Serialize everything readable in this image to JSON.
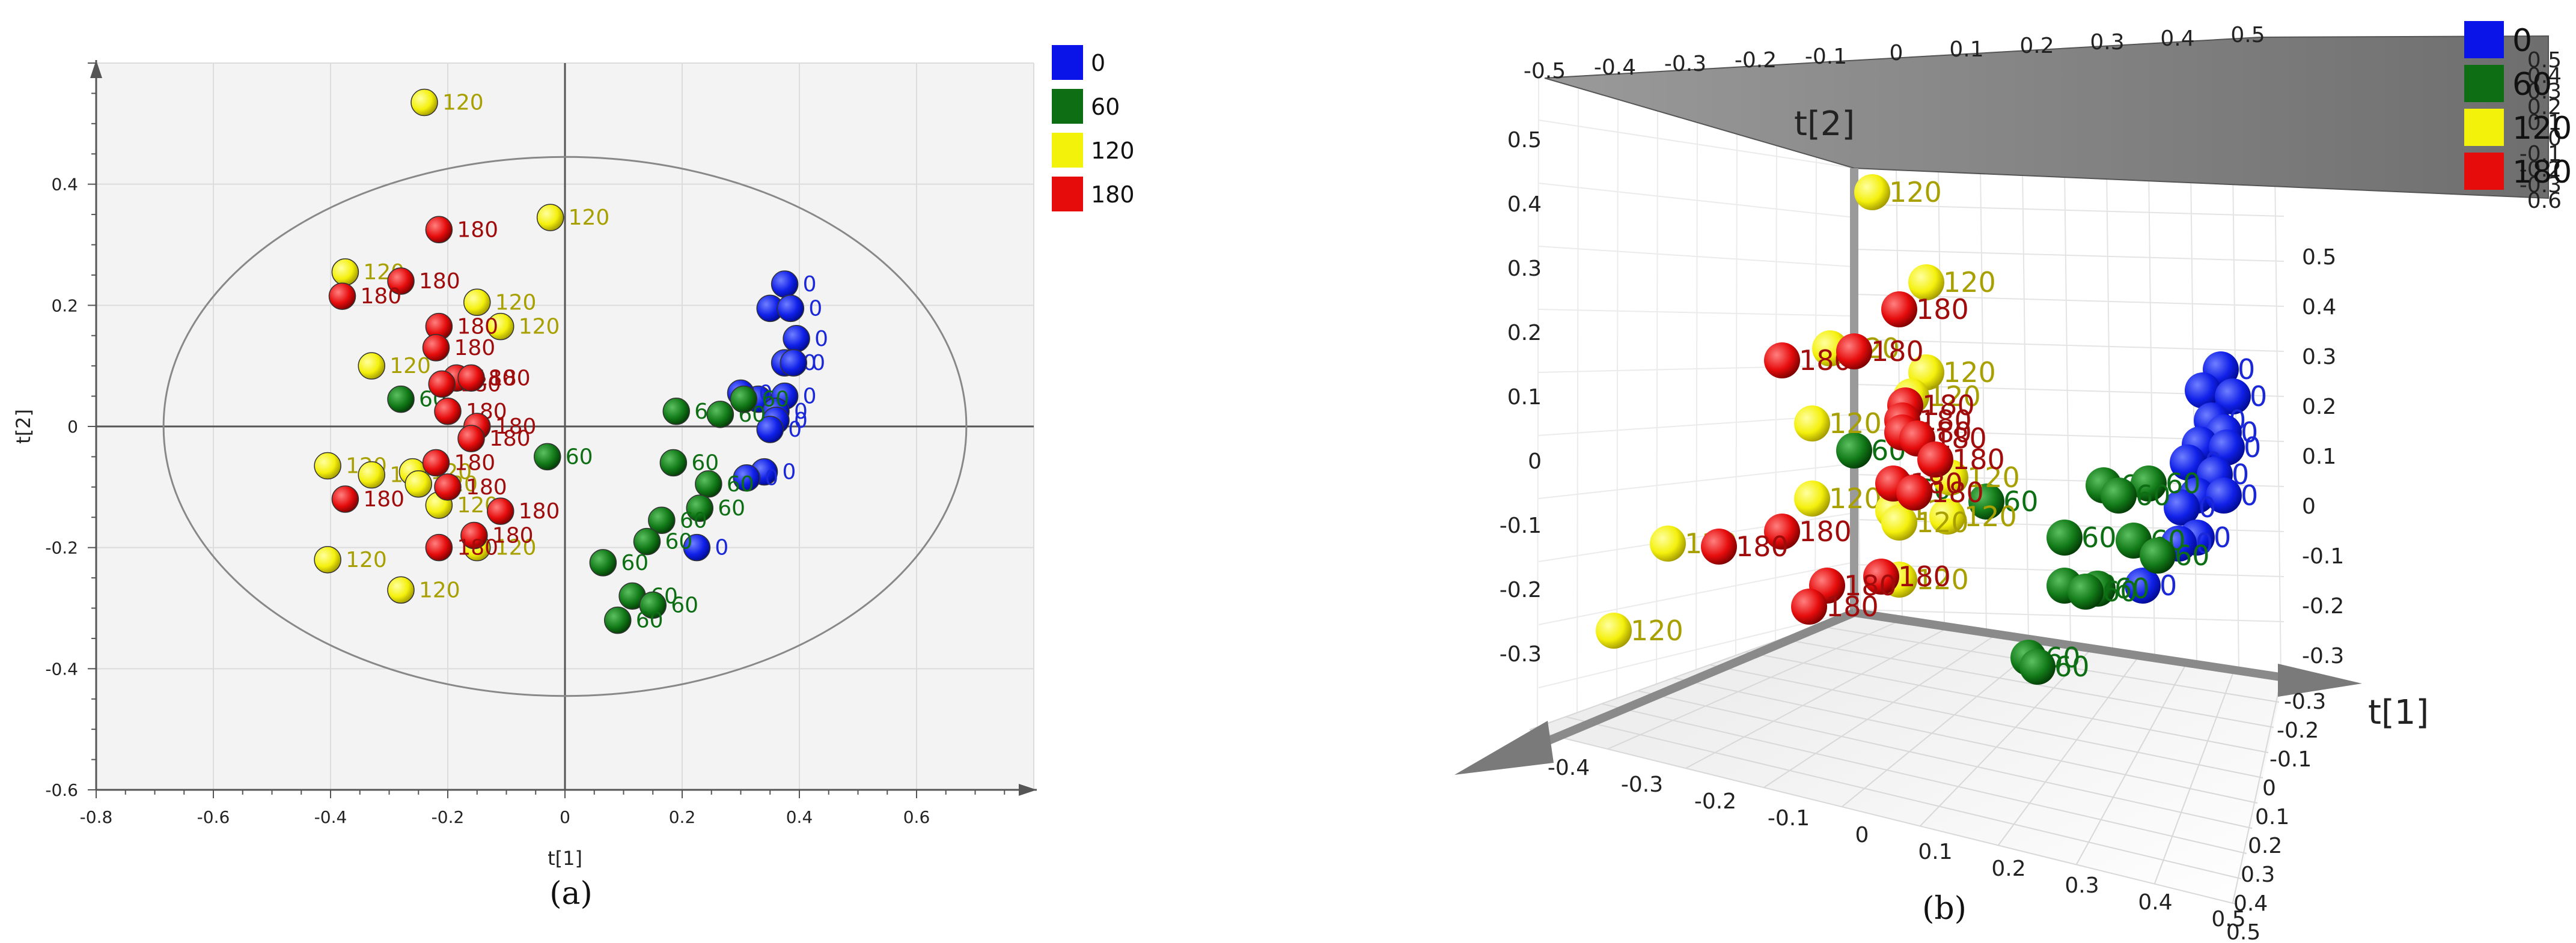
{
  "colors": {
    "0": {
      "fill": "#0a14e8",
      "text": "#1a28d8"
    },
    "60": {
      "fill": "#0d6e14",
      "text": "#0d6e14"
    },
    "120": {
      "fill": "#f2f20a",
      "text": "#a8a000"
    },
    "180": {
      "fill": "#e60c0c",
      "text": "#a00c0c"
    }
  },
  "chart_data": [
    {
      "type": "scatter",
      "caption": "(a)",
      "xlabel": "t[1]",
      "ylabel": "t[2]",
      "xlim": [
        -0.8,
        0.8
      ],
      "ylim": [
        -0.6,
        0.6
      ],
      "xticks": [
        "-0.8",
        "-0.6",
        "-0.4",
        "-0.2",
        "0",
        "0.2",
        "0.4",
        "0.6"
      ],
      "yticks": [
        "-0.6",
        "-0.4",
        "-0.2",
        "0",
        "0.2",
        "0.4"
      ],
      "legend": [
        {
          "key": "0",
          "label": "0"
        },
        {
          "key": "60",
          "label": "60"
        },
        {
          "key": "120",
          "label": "120"
        },
        {
          "key": "180",
          "label": "180"
        }
      ],
      "series": [
        {
          "key": "0",
          "points": [
            {
              "x": 0.375,
              "y": 0.235,
              "label": "0"
            },
            {
              "x": 0.35,
              "y": 0.195,
              "label": "0"
            },
            {
              "x": 0.385,
              "y": 0.195,
              "label": "0"
            },
            {
              "x": 0.395,
              "y": 0.145,
              "label": "0"
            },
            {
              "x": 0.375,
              "y": 0.105,
              "label": "0"
            },
            {
              "x": 0.39,
              "y": 0.105,
              "label": "0"
            },
            {
              "x": 0.33,
              "y": 0.045,
              "label": "0"
            },
            {
              "x": 0.375,
              "y": 0.05,
              "label": "0"
            },
            {
              "x": 0.36,
              "y": 0.025,
              "label": "0"
            },
            {
              "x": 0.36,
              "y": 0.01,
              "label": "0"
            },
            {
              "x": 0.35,
              "y": -0.005,
              "label": "0"
            },
            {
              "x": 0.3,
              "y": 0.055,
              "label": "0"
            },
            {
              "x": 0.34,
              "y": -0.075,
              "label": "0"
            },
            {
              "x": 0.31,
              "y": -0.085,
              "label": "0"
            },
            {
              "x": 0.225,
              "y": -0.2,
              "label": "0"
            }
          ]
        },
        {
          "key": "60",
          "points": [
            {
              "x": -0.28,
              "y": 0.045,
              "label": "60"
            },
            {
              "x": -0.03,
              "y": -0.05,
              "label": "60"
            },
            {
              "x": 0.19,
              "y": 0.025,
              "label": "60"
            },
            {
              "x": 0.265,
              "y": 0.02,
              "label": "60"
            },
            {
              "x": 0.305,
              "y": 0.045,
              "label": "60"
            },
            {
              "x": 0.185,
              "y": -0.06,
              "label": "60"
            },
            {
              "x": 0.245,
              "y": -0.095,
              "label": "60"
            },
            {
              "x": 0.23,
              "y": -0.135,
              "label": "60"
            },
            {
              "x": 0.165,
              "y": -0.155,
              "label": "60"
            },
            {
              "x": 0.14,
              "y": -0.19,
              "label": "60"
            },
            {
              "x": 0.065,
              "y": -0.225,
              "label": "60"
            },
            {
              "x": 0.115,
              "y": -0.28,
              "label": "60"
            },
            {
              "x": 0.15,
              "y": -0.295,
              "label": "60"
            },
            {
              "x": 0.09,
              "y": -0.32,
              "label": "60"
            }
          ]
        },
        {
          "key": "120",
          "points": [
            {
              "x": -0.24,
              "y": 0.535,
              "label": "120"
            },
            {
              "x": -0.025,
              "y": 0.345,
              "label": "120"
            },
            {
              "x": -0.375,
              "y": 0.255,
              "label": "120"
            },
            {
              "x": -0.15,
              "y": 0.205,
              "label": "120"
            },
            {
              "x": -0.11,
              "y": 0.165,
              "label": "120"
            },
            {
              "x": -0.33,
              "y": 0.1,
              "label": "120"
            },
            {
              "x": -0.405,
              "y": -0.065,
              "label": "120"
            },
            {
              "x": -0.33,
              "y": -0.08,
              "label": "120"
            },
            {
              "x": -0.26,
              "y": -0.075,
              "label": "120"
            },
            {
              "x": -0.25,
              "y": -0.095,
              "label": "120"
            },
            {
              "x": -0.215,
              "y": -0.13,
              "label": "120"
            },
            {
              "x": -0.15,
              "y": -0.2,
              "label": "120"
            },
            {
              "x": -0.405,
              "y": -0.22,
              "label": "120"
            },
            {
              "x": -0.28,
              "y": -0.27,
              "label": "120"
            }
          ]
        },
        {
          "key": "180",
          "points": [
            {
              "x": -0.215,
              "y": 0.325,
              "label": "180"
            },
            {
              "x": -0.28,
              "y": 0.24,
              "label": "180"
            },
            {
              "x": -0.38,
              "y": 0.215,
              "label": "180"
            },
            {
              "x": -0.215,
              "y": 0.165,
              "label": "180"
            },
            {
              "x": -0.22,
              "y": 0.13,
              "label": "180"
            },
            {
              "x": -0.185,
              "y": 0.08,
              "label": "180"
            },
            {
              "x": -0.21,
              "y": 0.07,
              "label": "180"
            },
            {
              "x": -0.16,
              "y": 0.08,
              "label": "180"
            },
            {
              "x": -0.2,
              "y": 0.025,
              "label": "180"
            },
            {
              "x": -0.15,
              "y": 0.0,
              "label": "180"
            },
            {
              "x": -0.16,
              "y": -0.02,
              "label": "180"
            },
            {
              "x": -0.22,
              "y": -0.06,
              "label": "180"
            },
            {
              "x": -0.2,
              "y": -0.1,
              "label": "180"
            },
            {
              "x": -0.375,
              "y": -0.12,
              "label": "180"
            },
            {
              "x": -0.11,
              "y": -0.14,
              "label": "180"
            },
            {
              "x": -0.155,
              "y": -0.18,
              "label": "180"
            },
            {
              "x": -0.215,
              "y": -0.2,
              "label": "180"
            }
          ]
        }
      ]
    },
    {
      "type": "scatter3d",
      "caption": "(b)",
      "axes": [
        "t[1]",
        "t[2]"
      ],
      "legend": [
        {
          "key": "0",
          "label": "0"
        },
        {
          "key": "60",
          "label": "60"
        },
        {
          "key": "120",
          "label": "120"
        },
        {
          "key": "180",
          "label": "180"
        }
      ],
      "left_ticks": [
        "0.5",
        "0.4",
        "0.3",
        "0.2",
        "0.1",
        "0",
        "-0.1",
        "-0.2",
        "-0.3"
      ],
      "top_ticks": [
        "-0.5",
        "-0.4",
        "-0.3",
        "-0.2",
        "-0.1",
        "0",
        "0.1",
        "0.2",
        "0.3",
        "0.4",
        "0.5"
      ],
      "top_right_ticks": [
        "0.5",
        "0.4",
        "0.3",
        "0.2",
        "0.1",
        "0",
        "-0.1",
        "-0.2",
        "-0.3",
        "0.6"
      ],
      "right_ticks": [
        "0.5",
        "0.4",
        "0.3",
        "0.2",
        "0.1",
        "0",
        "-0.1",
        "-0.2",
        "-0.3"
      ],
      "bottom_ticks": [
        "-0.4",
        "-0.3",
        "-0.2",
        "-0.1",
        "0",
        "0.1",
        "0.2",
        "0.3",
        "0.4",
        "0.5"
      ],
      "bottom_right_ticks": [
        "-0.3",
        "-0.2",
        "-0.1",
        "0",
        "0.1",
        "0.2",
        "0.3",
        "0.4",
        "0.5"
      ],
      "series": [
        {
          "key": "0",
          "points": [
            "0",
            "0",
            "0",
            "0",
            "0",
            "0",
            "0",
            "0",
            "0",
            "0",
            "0",
            "0",
            "0",
            "0",
            "0"
          ]
        },
        {
          "key": "60",
          "points": [
            "60",
            "60",
            "60",
            "60",
            "60",
            "60",
            "60",
            "60",
            "60",
            "60",
            "60",
            "60",
            "60",
            "60"
          ]
        },
        {
          "key": "120",
          "points": [
            "120",
            "120",
            "120",
            "120",
            "120",
            "120",
            "120",
            "120",
            "120",
            "120",
            "120",
            "120",
            "120",
            "120"
          ]
        },
        {
          "key": "180",
          "points": [
            "180",
            "180",
            "180",
            "180",
            "180",
            "180",
            "180",
            "180",
            "180",
            "180",
            "180",
            "180",
            "180",
            "180",
            "180"
          ]
        }
      ]
    }
  ]
}
